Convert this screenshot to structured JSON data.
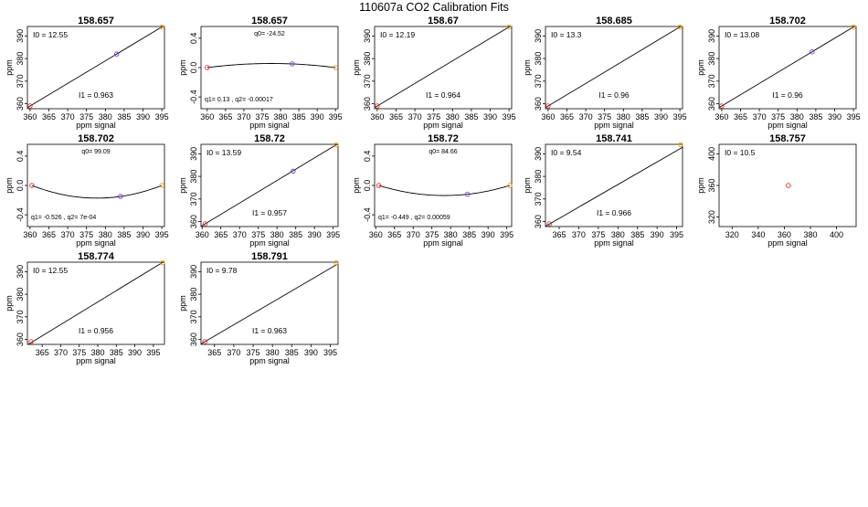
{
  "page_title": "110607a   CO2 Calibration Fits",
  "colors": {
    "low_point": "#e8312e",
    "mid_point": "#7b3fd6",
    "high_point": "#e8a312",
    "line": "#000000"
  },
  "chart_data": [
    {
      "type": "line",
      "title": "158.657",
      "fit": "linear",
      "xlabel": "ppm signal",
      "ylabel": "ppm",
      "xlim": [
        359.3,
        395.7
      ],
      "ylim": [
        357.8,
        394.2
      ],
      "xticks": [
        360,
        365,
        370,
        375,
        380,
        385,
        390,
        395
      ],
      "yticks": [
        360,
        370,
        380,
        390
      ],
      "points": [
        {
          "x": 360,
          "y": 359,
          "color": "low_point"
        },
        {
          "x": 383,
          "y": 382,
          "color": "mid_point"
        },
        {
          "x": 395,
          "y": 394,
          "color": "high_point"
        }
      ],
      "fit_coef": {
        "a": -1,
        "b": 1
      },
      "top_annotation": "I0 =  12.55",
      "bottom_annotation": "I1 =  0.963"
    },
    {
      "type": "line",
      "title": "158.657",
      "fit": "quadratic",
      "xlabel": "ppm signal",
      "ylabel": "ppm",
      "xlim": [
        358.3,
        395.7
      ],
      "ylim": [
        -0.56,
        0.56
      ],
      "xticks": [
        360,
        365,
        370,
        375,
        380,
        385,
        390,
        395
      ],
      "yticks": [
        -0.4,
        0.0,
        0.4
      ],
      "points": [
        {
          "x": 360,
          "y": 0,
          "color": "low_point"
        },
        {
          "x": 383.2,
          "y": 0.05,
          "color": "mid_point"
        },
        {
          "x": 395,
          "y": 0,
          "color": "high_point"
        }
      ],
      "fit_curve": {
        "x0": 360,
        "x1": 383.2,
        "x2": 395,
        "y0": 0,
        "y1": 0.05,
        "y2": 0
      },
      "top_annotation": "q0= -24.52",
      "bottom_annotation": "q1= 0.13 , q2= -0.00017"
    },
    {
      "type": "line",
      "title": "158.67",
      "fit": "linear",
      "xlabel": "ppm signal",
      "ylabel": "ppm",
      "xlim": [
        359.3,
        395.7
      ],
      "ylim": [
        357.8,
        394.2
      ],
      "xticks": [
        360,
        365,
        370,
        375,
        380,
        385,
        390,
        395
      ],
      "yticks": [
        360,
        370,
        380,
        390
      ],
      "points": [
        {
          "x": 360,
          "y": 359,
          "color": "low_point"
        },
        {
          "x": 395,
          "y": 394,
          "color": "high_point"
        }
      ],
      "fit_coef": {
        "a": -1,
        "b": 1
      },
      "top_annotation": "I0 =  12.19",
      "bottom_annotation": "I1 =  0.964"
    },
    {
      "type": "line",
      "title": "158.685",
      "fit": "linear",
      "xlabel": "ppm signal",
      "ylabel": "ppm",
      "xlim": [
        359.3,
        395.7
      ],
      "ylim": [
        357.8,
        394.2
      ],
      "xticks": [
        360,
        365,
        370,
        375,
        380,
        385,
        390,
        395
      ],
      "yticks": [
        360,
        370,
        380,
        390
      ],
      "points": [
        {
          "x": 360,
          "y": 359,
          "color": "low_point"
        },
        {
          "x": 395,
          "y": 394,
          "color": "high_point"
        }
      ],
      "fit_coef": {
        "a": -1,
        "b": 1
      },
      "top_annotation": "I0 =  13.3",
      "bottom_annotation": "I1 =  0.96"
    },
    {
      "type": "line",
      "title": "158.702",
      "fit": "linear",
      "xlabel": "ppm signal",
      "ylabel": "ppm",
      "xlim": [
        359.3,
        395.7
      ],
      "ylim": [
        357.8,
        394.2
      ],
      "xticks": [
        360,
        365,
        370,
        375,
        380,
        385,
        390,
        395
      ],
      "yticks": [
        360,
        370,
        380,
        390
      ],
      "points": [
        {
          "x": 360,
          "y": 359,
          "color": "low_point"
        },
        {
          "x": 384,
          "y": 383,
          "color": "mid_point"
        },
        {
          "x": 395,
          "y": 394,
          "color": "high_point"
        }
      ],
      "fit_coef": {
        "a": -1,
        "b": 1
      },
      "top_annotation": "I0 =  13.08",
      "bottom_annotation": "I1 =  0.96"
    },
    {
      "type": "line",
      "title": "158.702",
      "fit": "quadratic",
      "xlabel": "ppm signal",
      "ylabel": "ppm",
      "xlim": [
        359.3,
        395.7
      ],
      "ylim": [
        -0.56,
        0.56
      ],
      "xticks": [
        360,
        365,
        370,
        375,
        380,
        385,
        390,
        395
      ],
      "yticks": [
        -0.4,
        0.0,
        0.4
      ],
      "points": [
        {
          "x": 360.5,
          "y": 0,
          "color": "low_point"
        },
        {
          "x": 384,
          "y": -0.15,
          "color": "mid_point"
        },
        {
          "x": 395,
          "y": 0,
          "color": "high_point"
        }
      ],
      "fit_curve": {
        "x0": 360.5,
        "x1": 384,
        "x2": 395,
        "y0": 0,
        "y1": -0.15,
        "y2": 0
      },
      "top_annotation": "q0= 99.09",
      "bottom_annotation": "q1= -0.526 , q2= 7e-04"
    },
    {
      "type": "line",
      "title": "158.72",
      "fit": "linear",
      "xlabel": "ppm signal",
      "ylabel": "ppm",
      "xlim": [
        359.7,
        396.3
      ],
      "ylim": [
        357.8,
        394.2
      ],
      "xticks": [
        360,
        365,
        370,
        375,
        380,
        385,
        390,
        395
      ],
      "yticks": [
        360,
        370,
        380,
        390
      ],
      "points": [
        {
          "x": 360.8,
          "y": 359,
          "color": "low_point"
        },
        {
          "x": 384.3,
          "y": 382.3,
          "color": "mid_point"
        },
        {
          "x": 395.8,
          "y": 394,
          "color": "high_point"
        }
      ],
      "fit_coef": {
        "a": -1.8,
        "b": 1
      },
      "top_annotation": "I0 =  13.59",
      "bottom_annotation": "I1 =  0.957"
    },
    {
      "type": "line",
      "title": "158.72",
      "fit": "quadratic",
      "xlabel": "ppm signal",
      "ylabel": "ppm",
      "xlim": [
        359.7,
        396.3
      ],
      "ylim": [
        -0.56,
        0.56
      ],
      "xticks": [
        360,
        365,
        370,
        375,
        380,
        385,
        390,
        395
      ],
      "yticks": [
        -0.4,
        0.0,
        0.4
      ],
      "points": [
        {
          "x": 360.8,
          "y": 0,
          "color": "low_point"
        },
        {
          "x": 384.5,
          "y": -0.12,
          "color": "mid_point"
        },
        {
          "x": 395.8,
          "y": 0,
          "color": "high_point"
        }
      ],
      "fit_curve": {
        "x0": 360.8,
        "x1": 384.5,
        "x2": 395.8,
        "y0": 0,
        "y1": -0.12,
        "y2": 0
      },
      "top_annotation": "q0= 84.66",
      "bottom_annotation": "q1= -0.449 , q2= 0.00059"
    },
    {
      "type": "line",
      "title": "158.741",
      "fit": "linear",
      "xlabel": "ppm signal",
      "ylabel": "ppm",
      "xlim": [
        361.5,
        396.5
      ],
      "ylim": [
        357.8,
        394.2
      ],
      "xticks": [
        365,
        370,
        375,
        380,
        385,
        390,
        395
      ],
      "yticks": [
        360,
        370,
        380,
        390
      ],
      "points": [
        {
          "x": 362.5,
          "y": 359,
          "color": "low_point"
        },
        {
          "x": 396,
          "y": 394,
          "color": "high_point"
        }
      ],
      "fit_coef": {
        "a": -3.6,
        "b": 1
      },
      "top_annotation": "I0 =  9.54",
      "bottom_annotation": "I1 =  0.966"
    },
    {
      "type": "scatter",
      "title": "158.757",
      "fit": "none",
      "xlabel": "ppm signal",
      "ylabel": "ppm",
      "xlim": [
        310,
        415
      ],
      "ylim": [
        308,
        412
      ],
      "xticks": [
        320,
        340,
        360,
        380,
        400
      ],
      "yticks": [
        320,
        360,
        400
      ],
      "points": [
        {
          "x": 363,
          "y": 360,
          "color": "low_point"
        }
      ],
      "top_annotation": "I0 =  10.5",
      "bottom_annotation": ""
    },
    {
      "type": "line",
      "title": "158.774",
      "fit": "linear",
      "xlabel": "ppm signal",
      "ylabel": "ppm",
      "xlim": [
        361,
        398
      ],
      "ylim": [
        357.8,
        394.2
      ],
      "xticks": [
        365,
        370,
        375,
        380,
        385,
        390,
        395
      ],
      "yticks": [
        360,
        370,
        380,
        390
      ],
      "points": [
        {
          "x": 362,
          "y": 359,
          "color": "low_point"
        },
        {
          "x": 397.5,
          "y": 394,
          "color": "high_point"
        }
      ],
      "fit_coef": {
        "a": -3.4,
        "b": 1
      },
      "top_annotation": "I0 =  12.55",
      "bottom_annotation": "I1 =  0.956"
    },
    {
      "type": "line",
      "title": "158.791",
      "fit": "linear",
      "xlabel": "ppm signal",
      "ylabel": "ppm",
      "xlim": [
        361.5,
        397
      ],
      "ylim": [
        357.8,
        394.2
      ],
      "xticks": [
        365,
        370,
        375,
        380,
        385,
        390,
        395
      ],
      "yticks": [
        360,
        370,
        380,
        390
      ],
      "points": [
        {
          "x": 362.5,
          "y": 359,
          "color": "low_point"
        },
        {
          "x": 396.5,
          "y": 394,
          "color": "high_point"
        }
      ],
      "fit_coef": {
        "a": -3.5,
        "b": 1
      },
      "top_annotation": "I0 =  9.78",
      "bottom_annotation": "I1 =  0.963"
    }
  ]
}
